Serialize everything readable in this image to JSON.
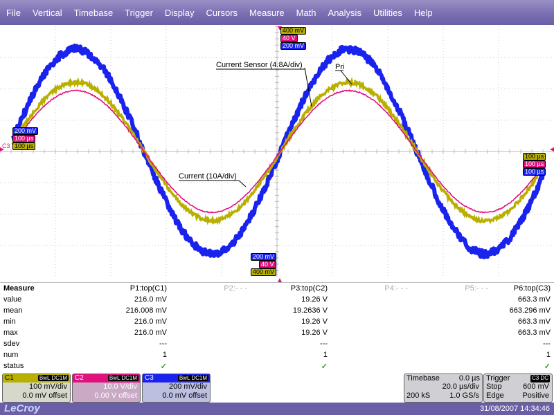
{
  "menu": [
    "File",
    "Vertical",
    "Timebase",
    "Trigger",
    "Display",
    "Cursors",
    "Measure",
    "Math",
    "Analysis",
    "Utilities",
    "Help"
  ],
  "colors": {
    "c1": "#b8b000",
    "c2": "#e0117f",
    "c3": "#1a22ee",
    "menu": "#7b6fb2"
  },
  "scope": {
    "markers": {
      "top_center": [
        "400 mV",
        "40 V",
        "200 mV"
      ],
      "left": [
        "200 mV",
        "100 µs",
        "100 µs"
      ],
      "right": [
        "100 µs",
        "100 µs",
        "100 µs"
      ],
      "bottom_center": [
        "200 mV",
        "40 V",
        "400 mV"
      ],
      "left_trace_label": "C3"
    },
    "annotations": {
      "current_sensor": "Current Sensor (4.8A/div)",
      "pri": "Pri",
      "current": "Current (10A/div)"
    }
  },
  "measure": {
    "title": "Measure",
    "params": [
      "P1:top(C1)",
      "P2:- - -",
      "P3:top(C2)",
      "P4:- - -",
      "P5:- - -",
      "P6:top(C3)"
    ],
    "rows": [
      {
        "label": "value",
        "p1": "216.0 mV",
        "p3": "19.26 V",
        "p6": "663.3 mV"
      },
      {
        "label": "mean",
        "p1": "216.008 mV",
        "p3": "19.2636 V",
        "p6": "663.296 mV"
      },
      {
        "label": "min",
        "p1": "216.0 mV",
        "p3": "19.26 V",
        "p6": "663.3 mV"
      },
      {
        "label": "max",
        "p1": "216.0 mV",
        "p3": "19.26 V",
        "p6": "663.3 mV"
      },
      {
        "label": "sdev",
        "p1": "---",
        "p3": "---",
        "p6": "---"
      },
      {
        "label": "num",
        "p1": "1",
        "p3": "1",
        "p6": "1"
      }
    ],
    "status_label": "status",
    "status_mark": "✓"
  },
  "channels": [
    {
      "name": "C1",
      "flag": "BwL DC1M",
      "vdiv": "100 mV/div",
      "offset": "0.0 mV offset"
    },
    {
      "name": "C2",
      "flag": "BwL DC1M",
      "vdiv": "10.0 V/div",
      "offset": "0.00 V offset"
    },
    {
      "name": "C3",
      "flag": "BwL DC1M",
      "vdiv": "200 mV/div",
      "offset": "0.0 mV offset"
    }
  ],
  "timebase": {
    "label": "Timebase",
    "delay": "0.0 µs",
    "tdiv": "20.0 µs/div",
    "samples": "200 kS",
    "rate": "1.0 GS/s"
  },
  "trigger": {
    "label": "Trigger",
    "source": "C3 DC",
    "mode": "Stop",
    "level": "600 mV",
    "type": "Edge",
    "slope": "Positive"
  },
  "status": {
    "logo": "LeCroy",
    "datetime": "31/08/2007 14:34:46"
  }
}
